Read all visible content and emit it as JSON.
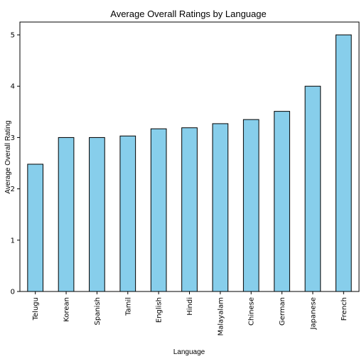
{
  "chart_data": {
    "type": "bar",
    "title": "Average Overall Ratings by Language",
    "xlabel": "Language",
    "ylabel": "Average Overall Rating",
    "categories": [
      "Telugu",
      "Korean",
      "Spanish",
      "Tamil",
      "English",
      "Hindi",
      "Malayalam",
      "Chinese",
      "German",
      "Japanese",
      "French"
    ],
    "values": [
      2.48,
      3.0,
      3.0,
      3.03,
      3.17,
      3.19,
      3.27,
      3.35,
      3.51,
      4.0,
      5.0
    ],
    "yticks": [
      0,
      1,
      2,
      3,
      4,
      5
    ],
    "ylim": [
      0,
      5.25
    ],
    "bar_color": "#87CEEB",
    "edge_color": "#000000",
    "grid": false,
    "legend": "none"
  }
}
